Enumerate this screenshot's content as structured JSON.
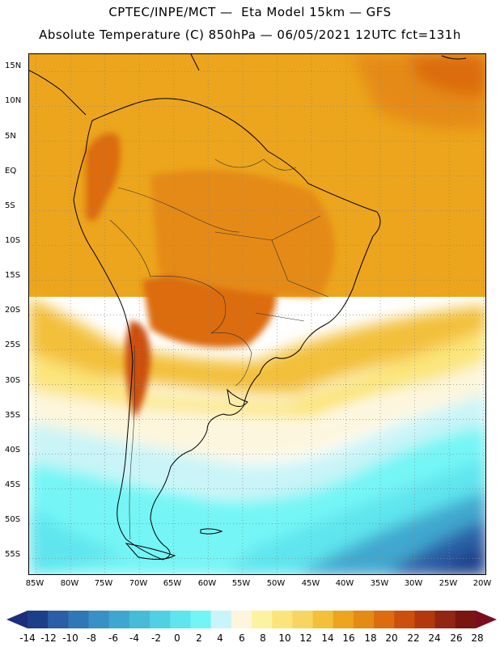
{
  "header": {
    "line1": "CPTEC/INPE/MCT —  Eta Model 15km — GFS",
    "line2": "Absolute Temperature (C) 850hPa — 06/05/2021 12UTC fct=131h"
  },
  "axes": {
    "lat_labels": [
      "15N",
      "10N",
      "5N",
      "EQ",
      "5S",
      "10S",
      "15S",
      "20S",
      "25S",
      "30S",
      "35S",
      "40S",
      "45S",
      "50S",
      "55S"
    ],
    "lon_labels": [
      "85W",
      "80W",
      "75W",
      "70W",
      "65W",
      "60W",
      "55W",
      "50W",
      "45W",
      "40W",
      "35W",
      "30W",
      "25W",
      "20W"
    ],
    "lat_range": [
      17.5,
      -57.5
    ],
    "lon_range": [
      -86,
      -19.5
    ],
    "grid": "dotted"
  },
  "colorbar": {
    "labels": [
      "-14",
      "-12",
      "-10",
      "-8",
      "-6",
      "-4",
      "-2",
      "0",
      "2",
      "4",
      "6",
      "8",
      "10",
      "12",
      "14",
      "16",
      "18",
      "20",
      "22",
      "24",
      "26",
      "28"
    ],
    "colors": [
      "#1d3f8a",
      "#2a5ea6",
      "#2f77b6",
      "#3990c4",
      "#3fa7cf",
      "#46bcd8",
      "#4fd0e3",
      "#5ee5ee",
      "#74f5f5",
      "#c9f4f8",
      "#fdf6dd",
      "#fcf3a0",
      "#fbe57a",
      "#f7d560",
      "#f3c03a",
      "#eca51c",
      "#e58a12",
      "#dc6c0e",
      "#cc4f0c",
      "#b3380c",
      "#922612",
      "#7a1610"
    ],
    "left_arrow_color": "#1c2f7a",
    "right_arrow_color": "#7a0e1c"
  },
  "legend_colors": {
    "ocean_north": "#eca51c",
    "land_hot": "#dc6c0e",
    "ocean_mid": "#fbe57a",
    "ocean_cold": "#5ee5ee",
    "deep_cold": "#1d3f8a",
    "coast": "#000000"
  }
}
